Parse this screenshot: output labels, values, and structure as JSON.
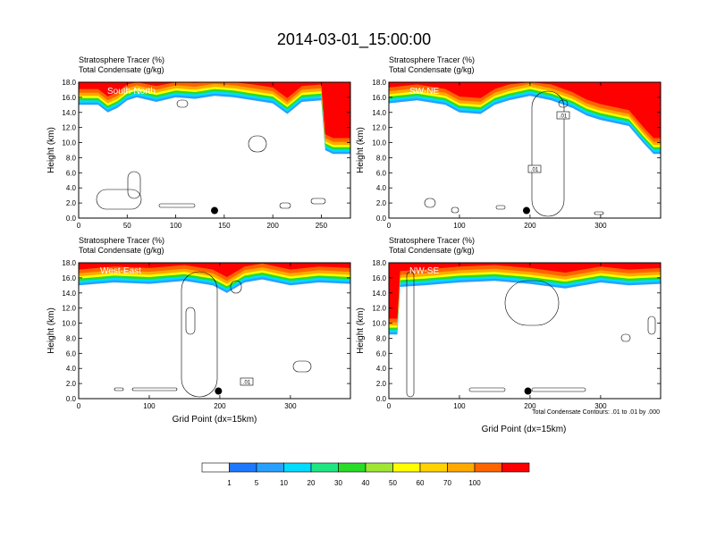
{
  "page": {
    "title": "2014-03-01_15:00:00"
  },
  "colors": {
    "scale": [
      "#ffffff",
      "#1e78ff",
      "#28a0ff",
      "#00dcff",
      "#1ee682",
      "#28dc28",
      "#a0e632",
      "#ffff00",
      "#ffd200",
      "#ffaa00",
      "#ff6400",
      "#ff0000"
    ]
  },
  "chart_data": [
    {
      "type": "heatmap",
      "panel": "South-North",
      "title_lines": [
        "Stratosphere Tracer   (%)",
        "Total Condensate   (g/kg)"
      ],
      "ylabel": "Height (km)",
      "xlabel": "",
      "xlim": [
        0,
        280
      ],
      "ylim": [
        0,
        18
      ],
      "x_ticks": [
        "0",
        "50",
        "100",
        "150",
        "200",
        "250"
      ],
      "x_tick_values": [
        0,
        50,
        100,
        150,
        200,
        250
      ],
      "y_ticks": [
        "0.0",
        "2.0",
        "4.0",
        "6.0",
        "8.0",
        "10.0",
        "12.0",
        "14.0",
        "16.0",
        "18.0"
      ],
      "tracer_base_km": [
        [
          0,
          15.0
        ],
        [
          20,
          15.0
        ],
        [
          30,
          14.0
        ],
        [
          40,
          14.6
        ],
        [
          50,
          15.6
        ],
        [
          60,
          16.0
        ],
        [
          80,
          15.4
        ],
        [
          100,
          16.0
        ],
        [
          120,
          15.8
        ],
        [
          140,
          16.2
        ],
        [
          160,
          16.0
        ],
        [
          180,
          15.6
        ],
        [
          200,
          15.2
        ],
        [
          215,
          13.8
        ],
        [
          230,
          15.4
        ],
        [
          250,
          15.6
        ],
        [
          254,
          9.0
        ],
        [
          262,
          8.5
        ],
        [
          270,
          8.5
        ],
        [
          280,
          8.5
        ]
      ],
      "marker": {
        "x": 140,
        "y": 1.0
      },
      "contour_label": ""
    },
    {
      "type": "heatmap",
      "panel": "SW-NE",
      "title_lines": [
        "Stratosphere Tracer   (%)",
        "Total Condensate   (g/kg)"
      ],
      "ylabel": "Height (km)",
      "xlabel": "",
      "xlim": [
        0,
        385
      ],
      "ylim": [
        0,
        18
      ],
      "x_ticks": [
        "0",
        "100",
        "200",
        "300"
      ],
      "x_tick_values": [
        0,
        100,
        200,
        300
      ],
      "y_ticks": [
        "0.0",
        "2.0",
        "4.0",
        "6.0",
        "8.0",
        "10.0",
        "12.0",
        "14.0",
        "16.0",
        "18.0"
      ],
      "tracer_base_km": [
        [
          0,
          15.2
        ],
        [
          40,
          15.6
        ],
        [
          80,
          15.0
        ],
        [
          100,
          14.0
        ],
        [
          130,
          13.8
        ],
        [
          150,
          15.0
        ],
        [
          170,
          15.6
        ],
        [
          200,
          16.2
        ],
        [
          230,
          15.6
        ],
        [
          260,
          14.6
        ],
        [
          280,
          13.6
        ],
        [
          300,
          13.0
        ],
        [
          340,
          12.2
        ],
        [
          360,
          10.0
        ],
        [
          375,
          8.5
        ],
        [
          385,
          8.5
        ]
      ],
      "marker": {
        "x": 195,
        "y": 1.0
      },
      "contour_label": ".01"
    },
    {
      "type": "heatmap",
      "panel": "West-East",
      "title_lines": [
        "Stratosphere Tracer   (%)",
        "Total Condensate   (g/kg)"
      ],
      "ylabel": "Height (km)",
      "xlabel": "Grid Point (dx=15km)",
      "xlim": [
        0,
        385
      ],
      "ylim": [
        0,
        18
      ],
      "x_ticks": [
        "0",
        "100",
        "200",
        "300"
      ],
      "x_tick_values": [
        0,
        100,
        200,
        300
      ],
      "y_ticks": [
        "0.0",
        "2.0",
        "4.0",
        "6.0",
        "8.0",
        "10.0",
        "12.0",
        "14.0",
        "16.0",
        "18.0"
      ],
      "tracer_base_km": [
        [
          0,
          15.0
        ],
        [
          50,
          15.4
        ],
        [
          100,
          15.2
        ],
        [
          150,
          15.6
        ],
        [
          190,
          15.0
        ],
        [
          210,
          14.0
        ],
        [
          235,
          15.4
        ],
        [
          260,
          15.8
        ],
        [
          300,
          15.0
        ],
        [
          340,
          15.4
        ],
        [
          385,
          15.2
        ]
      ],
      "marker": {
        "x": 198,
        "y": 1.0
      },
      "contour_label": ".01"
    },
    {
      "type": "heatmap",
      "panel": "NW-SE",
      "title_lines": [
        "Stratosphere Tracer   (%)",
        "Total Condensate   (g/kg)"
      ],
      "ylabel": "Height (km)",
      "xlabel": "Grid Point (dx=15km)",
      "xlim": [
        0,
        385
      ],
      "ylim": [
        0,
        18
      ],
      "x_ticks": [
        "0",
        "100",
        "200",
        "300"
      ],
      "x_tick_values": [
        0,
        100,
        200,
        300
      ],
      "y_ticks": [
        "0.0",
        "2.0",
        "4.0",
        "6.0",
        "8.0",
        "10.0",
        "12.0",
        "14.0",
        "16.0",
        "18.0"
      ],
      "tracer_base_km": [
        [
          0,
          8.5
        ],
        [
          12,
          8.5
        ],
        [
          16,
          14.8
        ],
        [
          50,
          15.0
        ],
        [
          100,
          15.4
        ],
        [
          150,
          15.6
        ],
        [
          200,
          15.2
        ],
        [
          250,
          14.6
        ],
        [
          300,
          15.4
        ],
        [
          340,
          15.0
        ],
        [
          385,
          15.2
        ]
      ],
      "marker": {
        "x": 197,
        "y": 1.0
      },
      "contour_label": "",
      "footnote": "Total Condensate Contours: .01 to .01 by .000"
    }
  ],
  "legend": {
    "labels": [
      "1",
      "5",
      "10",
      "20",
      "30",
      "40",
      "50",
      "60",
      "70",
      "100"
    ]
  }
}
